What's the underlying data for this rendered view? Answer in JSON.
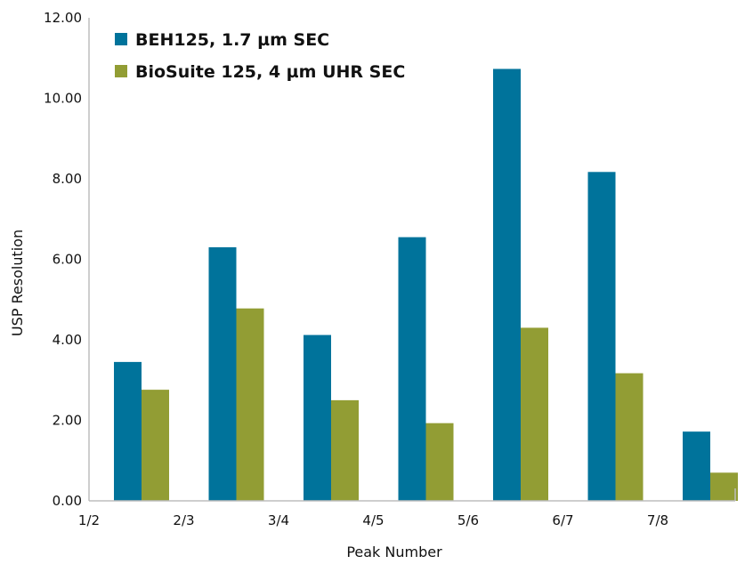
{
  "chart_data": {
    "type": "bar",
    "categories": [
      "1/2",
      "2/3",
      "3/4",
      "4/5",
      "5/6",
      "6/7",
      "7/8"
    ],
    "series": [
      {
        "name": "BEH125, 1.7 µm SEC",
        "color": "#00739b",
        "values": [
          3.45,
          6.3,
          4.12,
          6.55,
          10.73,
          8.17,
          1.72
        ]
      },
      {
        "name": "BioSuite 125, 4 µm UHR SEC",
        "color": "#929d34",
        "values": [
          2.76,
          4.78,
          2.5,
          1.93,
          4.3,
          3.17,
          0.7
        ]
      }
    ],
    "xlabel": "Peak Number",
    "ylabel": "USP Resolution",
    "ylim": [
      0,
      12
    ],
    "yticks": [
      "0.00",
      "2.00",
      "4.00",
      "6.00",
      "8.00",
      "10.00",
      "12.00"
    ],
    "grid": false,
    "legend_position": "top-left"
  }
}
